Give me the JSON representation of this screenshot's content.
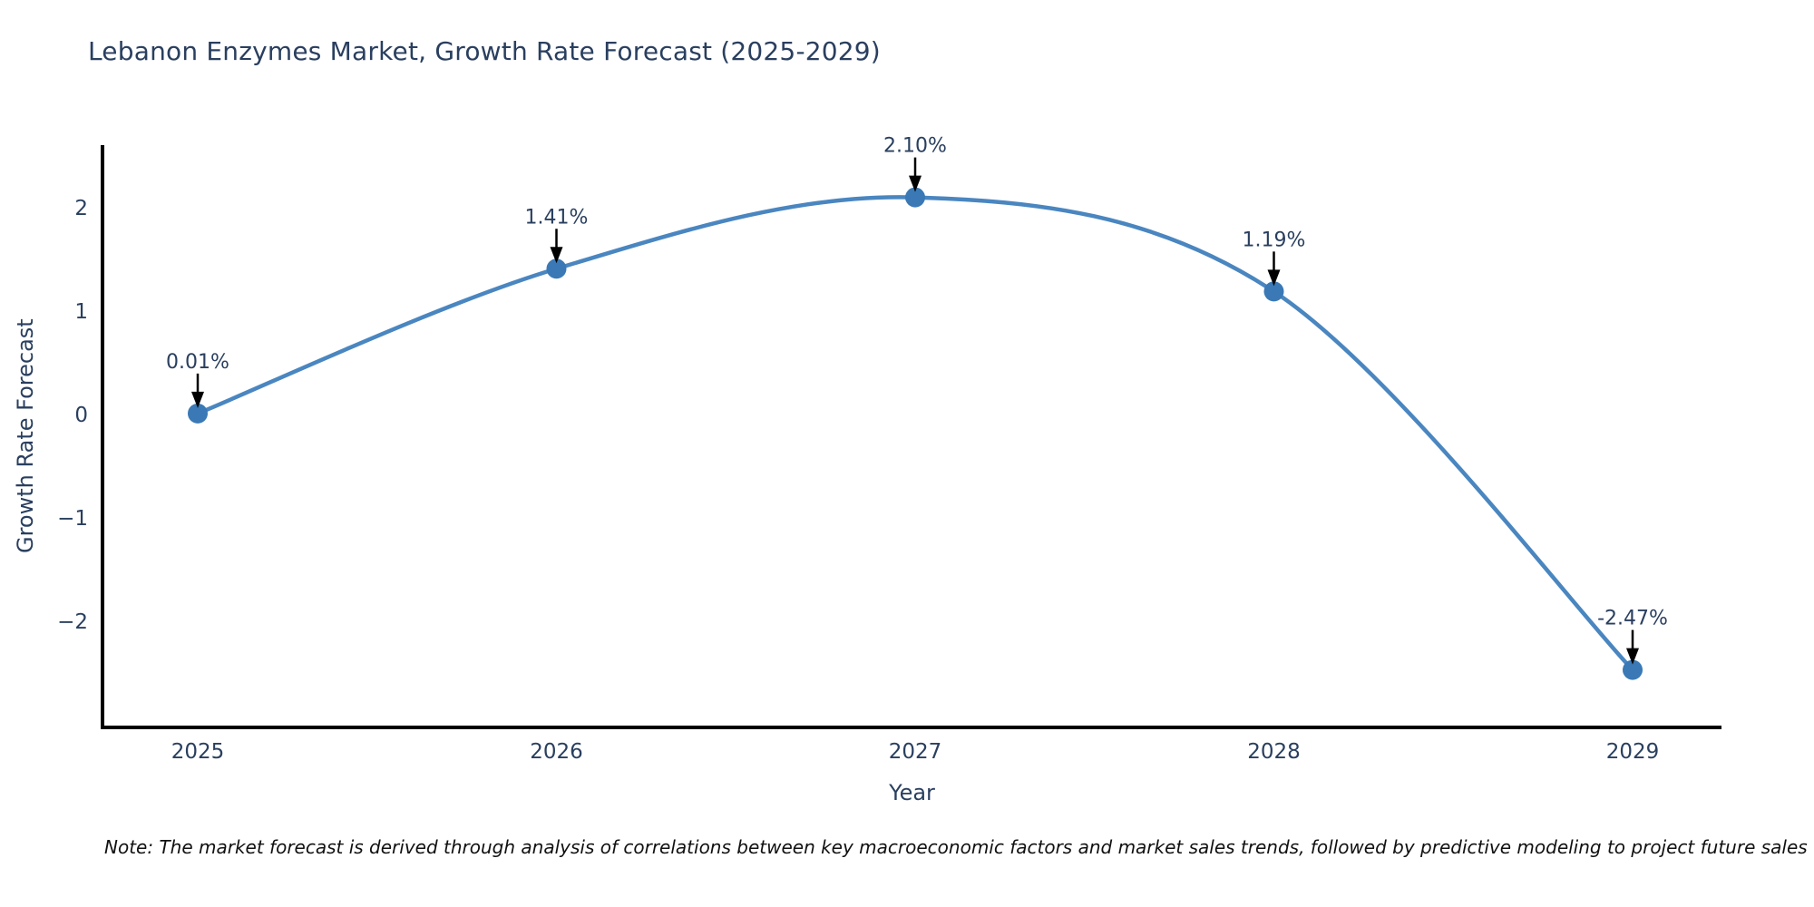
{
  "title": "Lebanon Enzymes Market, Growth Rate Forecast (2025-2029)",
  "note": "Note: The market forecast is derived through analysis of correlations between key macroeconomic factors and market sales trends, followed by predictive modeling to project future sales",
  "chart_data": {
    "type": "line",
    "title": "Lebanon Enzymes Market, Growth Rate Forecast (2025-2029)",
    "xlabel": "Year",
    "ylabel": "Growth Rate Forecast",
    "categories": [
      "2025",
      "2026",
      "2027",
      "2028",
      "2029"
    ],
    "values": [
      0.01,
      1.41,
      2.1,
      1.19,
      -2.47
    ],
    "point_labels": [
      "0.01%",
      "1.41%",
      "2.10%",
      "1.19%",
      "-2.47%"
    ],
    "y_tick_values": [
      2,
      1,
      0,
      -1,
      -2
    ],
    "y_tick_labels": [
      "2",
      "1",
      "0",
      "−1",
      "−2"
    ],
    "ylim": [
      -3.1,
      2.6
    ],
    "grid": false,
    "legend": "none",
    "line_shape": "spline",
    "colors": {
      "line": "#4a86c0",
      "marker": "#3a79b5",
      "axis": "#000000",
      "text": "#2a3f5f",
      "arrow": "#000000"
    }
  }
}
